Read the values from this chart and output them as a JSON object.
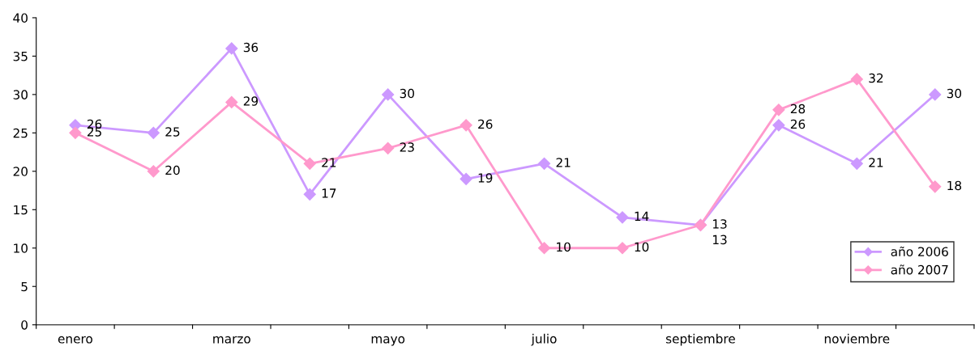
{
  "chart_data": {
    "type": "line",
    "categories": [
      "enero",
      null,
      "marzo",
      null,
      "mayo",
      null,
      "julio",
      null,
      "septiembre",
      null,
      "noviembre",
      null
    ],
    "series": [
      {
        "name": "año 2006",
        "color": "#cc99ff",
        "values": [
          26,
          25,
          36,
          17,
          30,
          19,
          21,
          14,
          13,
          26,
          21,
          30
        ]
      },
      {
        "name": "año 2007",
        "color": "#ff99cc",
        "values": [
          25,
          20,
          29,
          21,
          23,
          26,
          10,
          10,
          13,
          28,
          32,
          18
        ]
      }
    ],
    "ylim": [
      0,
      40
    ],
    "yticks": [
      0,
      5,
      10,
      15,
      20,
      25,
      30,
      35,
      40
    ],
    "marker": "diamond",
    "line_style": "solid",
    "data_labels": true,
    "legend": "bottom right",
    "grid": false
  }
}
